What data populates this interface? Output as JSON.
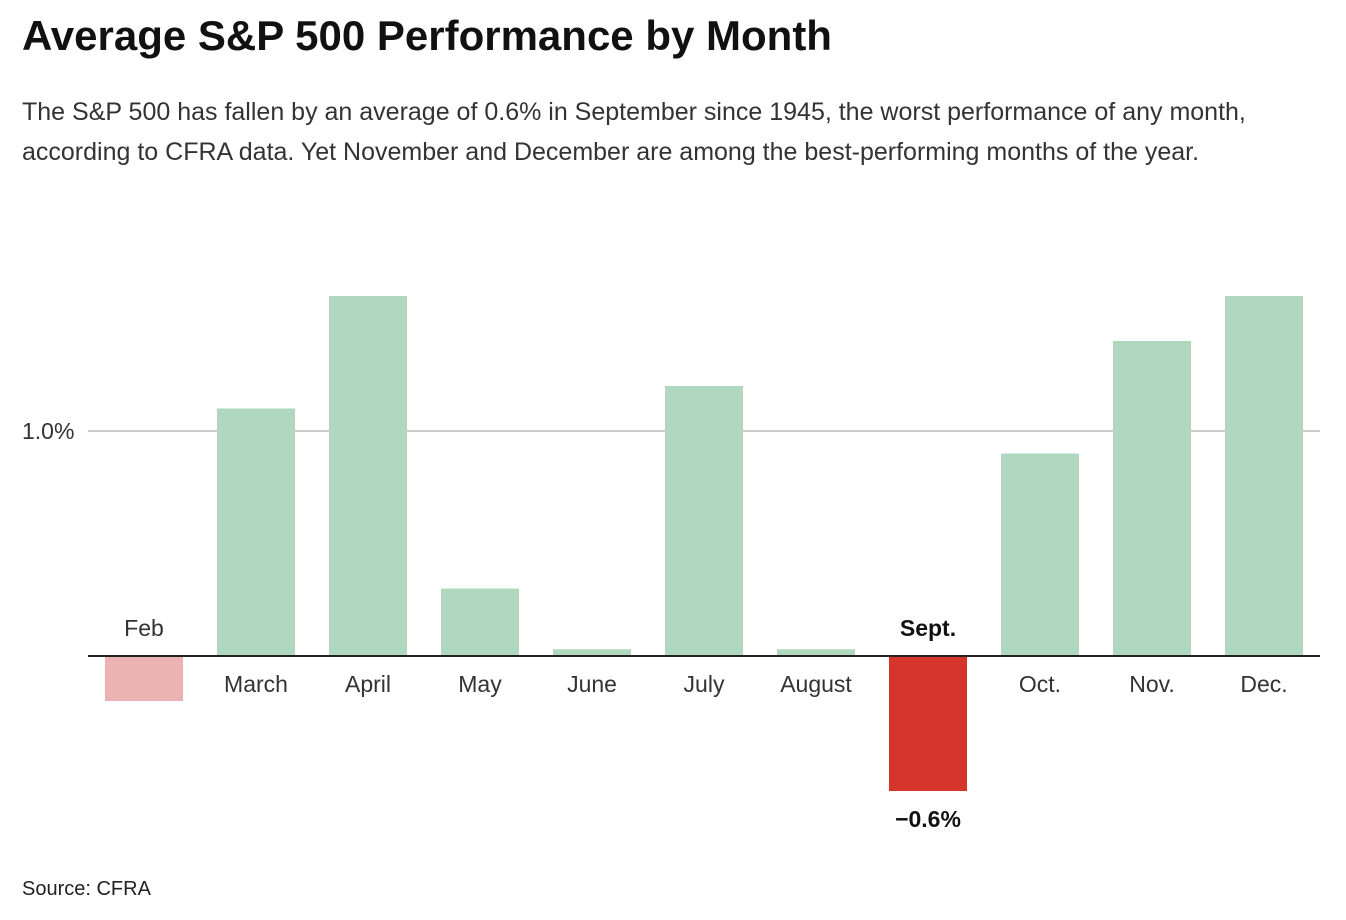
{
  "chart_data": {
    "type": "bar",
    "title": "Average S&P 500 Performance by Month",
    "subtitle": "The S&P 500 has fallen by an average of 0.6% in September since 1945, the worst performance of any month, according to CFRA data. Yet November and December are among the best-performing months of the year.",
    "source": "Source: CFRA",
    "categories": [
      "Feb",
      "March",
      "April",
      "May",
      "June",
      "July",
      "August",
      "Sept.",
      "Oct.",
      "Nov.",
      "Dec."
    ],
    "values": [
      -0.2,
      1.1,
      1.6,
      0.3,
      0.03,
      1.2,
      0.03,
      -0.6,
      0.9,
      1.4,
      1.6
    ],
    "value_labels": [
      null,
      null,
      null,
      null,
      null,
      null,
      null,
      "−0.6%",
      null,
      null,
      null
    ],
    "colors": [
      "#ecb3b3",
      "#b0d8bf",
      "#b0d8bf",
      "#b0d8bf",
      "#b0d8bf",
      "#b0d8bf",
      "#b0d8bf",
      "#d5352b",
      "#b0d8bf",
      "#b0d8bf",
      "#b0d8bf"
    ],
    "ylim": [
      -0.65,
      1.65
    ],
    "yticks": [
      {
        "value": 1,
        "label": "1.0%"
      }
    ],
    "grid": true
  }
}
